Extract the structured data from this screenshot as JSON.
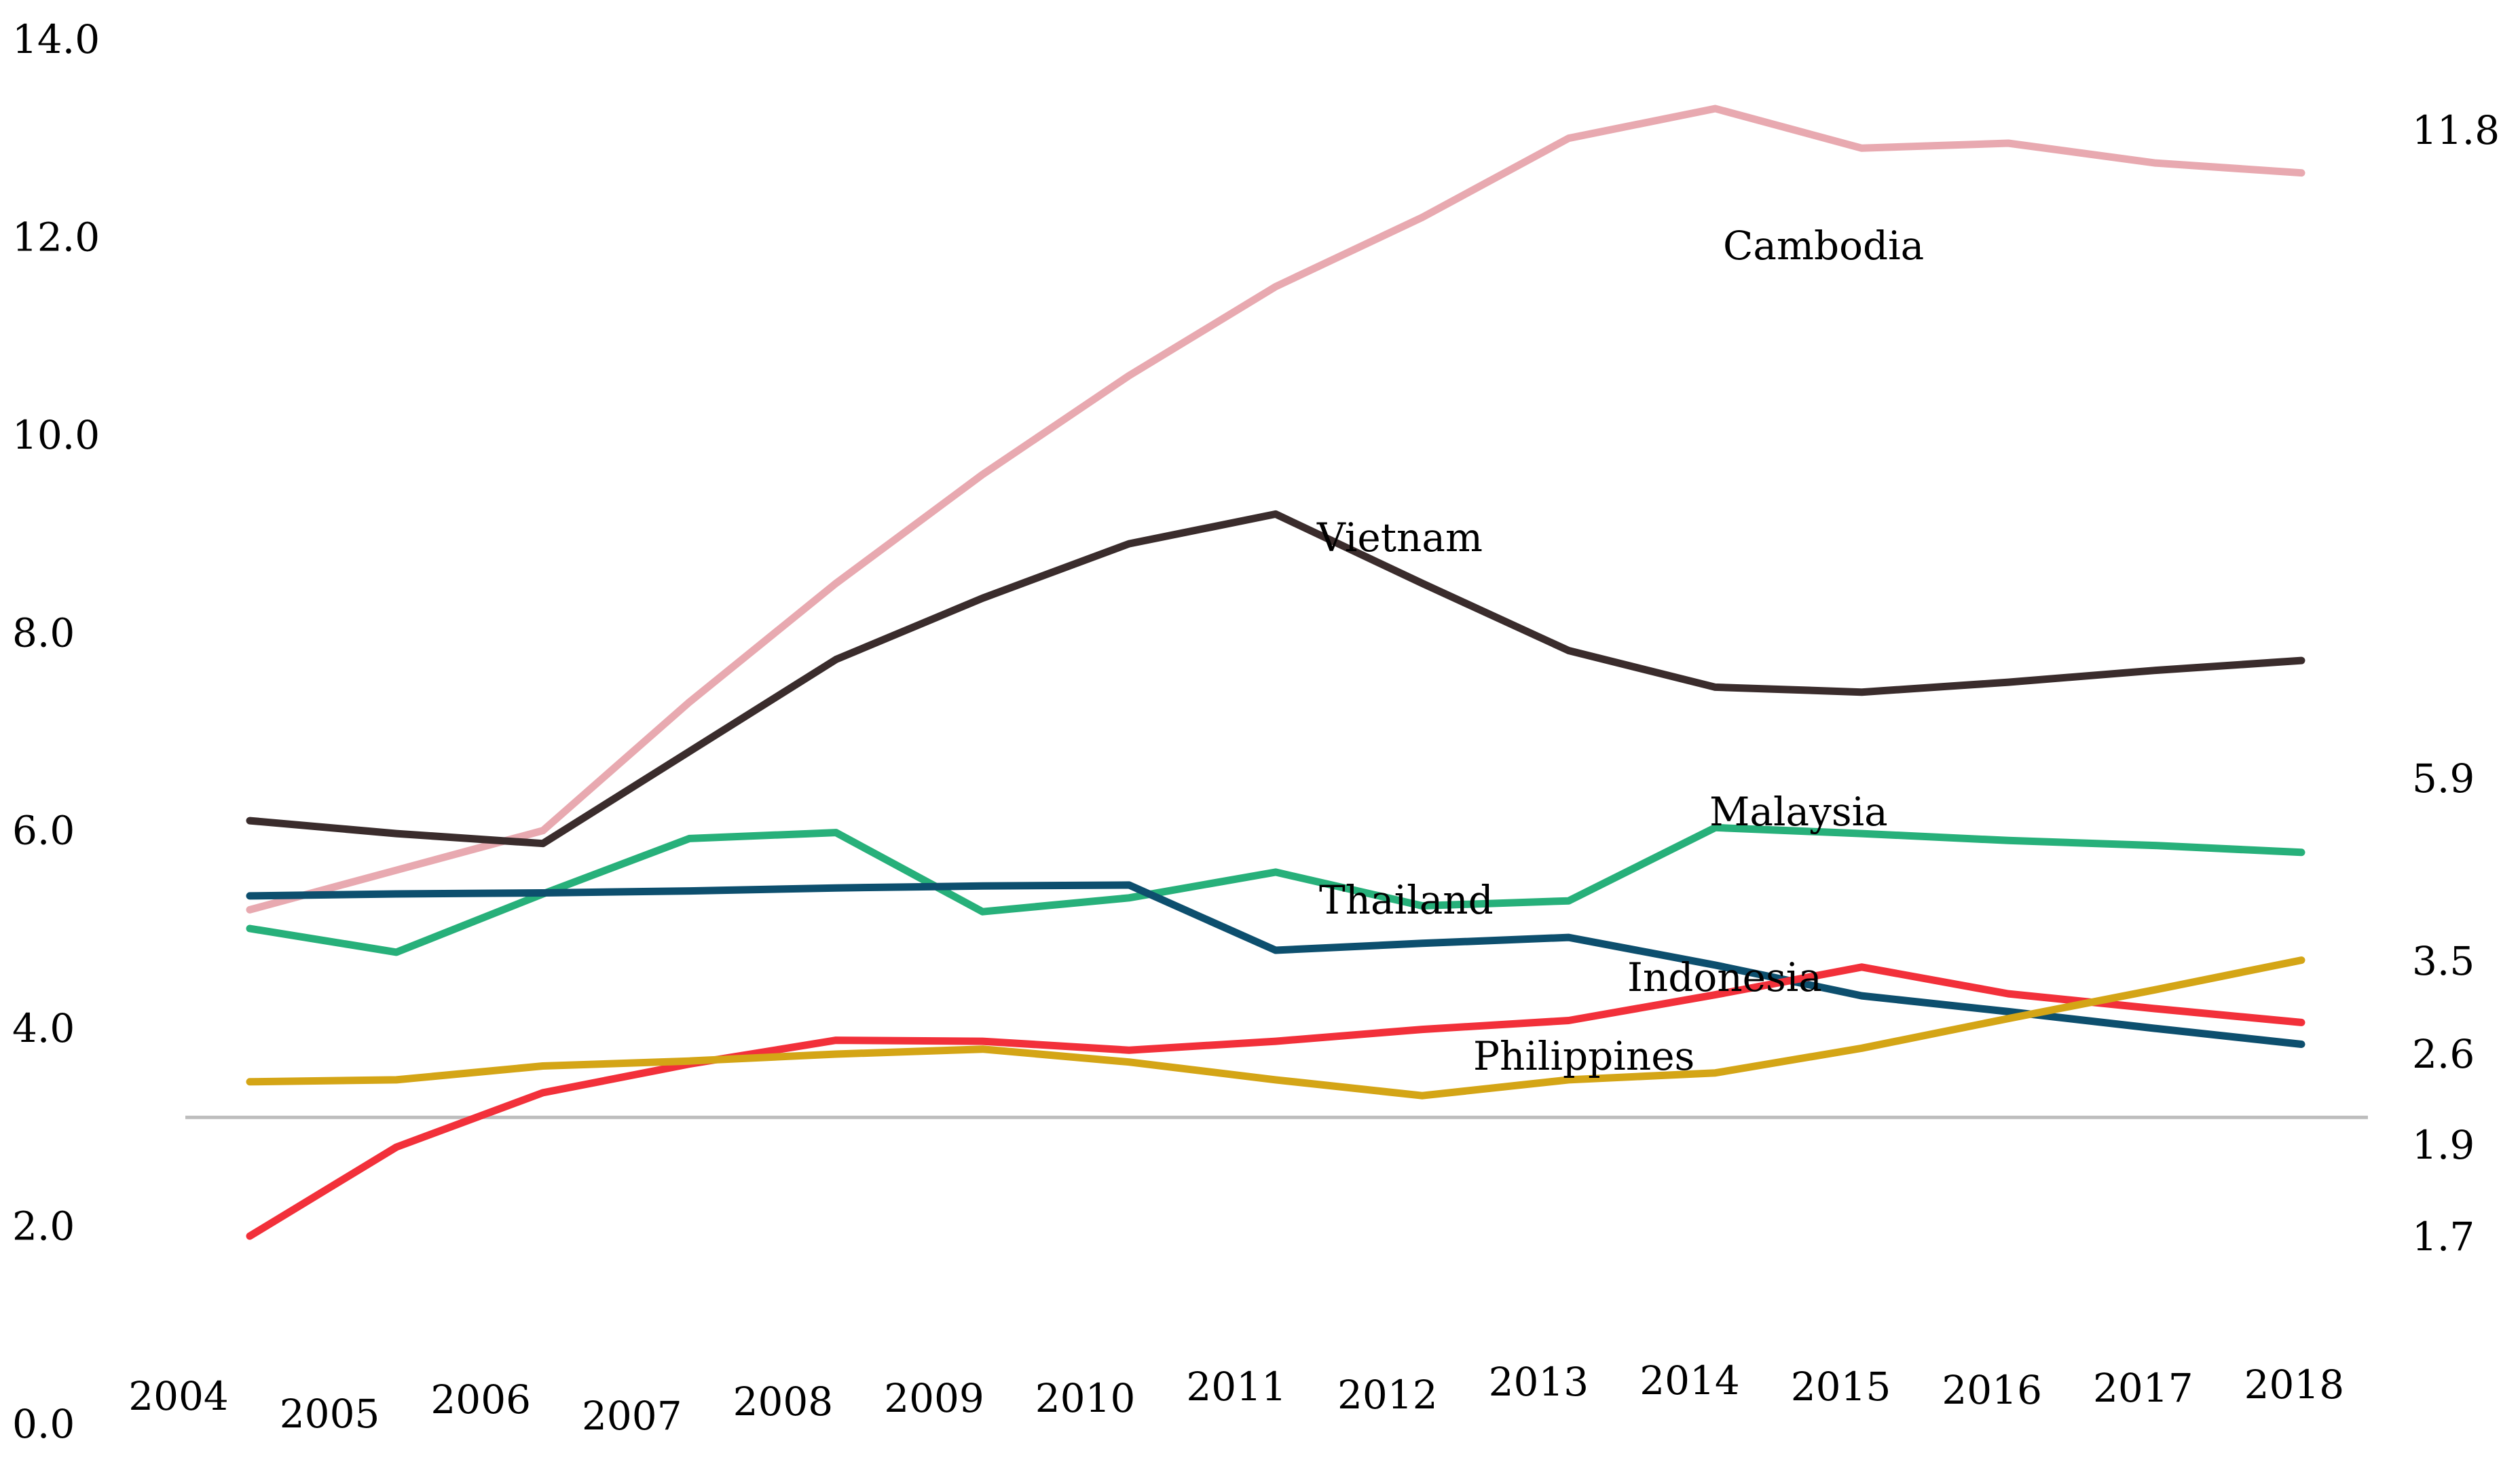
{
  "chart_data": {
    "type": "line",
    "title": "",
    "xlabel": "",
    "ylabel": "",
    "ylim": [
      0,
      14
    ],
    "y_ticks": [
      "0.0",
      "2.0",
      "4.0",
      "6.0",
      "8.0",
      "10.0",
      "12.0",
      "14.0"
    ],
    "x": [
      "2004",
      "2005",
      "2006",
      "2007",
      "2008",
      "2009",
      "2010",
      "2011",
      "2012",
      "2013",
      "2014",
      "2015",
      "2016",
      "2017",
      "2018"
    ],
    "grid": false,
    "legend": "inline labels",
    "reference_line": 3.1,
    "right_labels": [
      "11.8",
      "5.9",
      "3.5",
      "2.6",
      "1.9",
      "1.7"
    ],
    "series": [
      {
        "name": "Cambodia",
        "color": "#e8a9b0",
        "values": [
          5.2,
          5.6,
          6.0,
          7.3,
          8.5,
          9.6,
          10.6,
          11.5,
          12.2,
          13.0,
          13.3,
          12.9,
          12.95,
          12.75,
          12.65
        ]
      },
      {
        "name": "Vietnam",
        "color": "#3a2c2c",
        "values": [
          6.1,
          5.97,
          5.87,
          6.8,
          7.73,
          8.35,
          8.9,
          9.2,
          8.5,
          7.82,
          7.45,
          7.4,
          7.5,
          7.62,
          7.72
        ]
      },
      {
        "name": "Malaysia",
        "color": "#27b07a",
        "values": [
          5.01,
          4.77,
          5.36,
          5.92,
          5.98,
          5.18,
          5.32,
          5.58,
          5.24,
          5.29,
          6.03,
          5.97,
          5.9,
          5.85,
          5.78
        ]
      },
      {
        "name": "Thailand",
        "color": "#0d4f6e",
        "values": [
          5.34,
          5.36,
          5.37,
          5.39,
          5.42,
          5.44,
          5.45,
          4.79,
          4.86,
          4.92,
          4.64,
          4.33,
          4.17,
          4.0,
          3.84
        ]
      },
      {
        "name": "Indonesia",
        "color": "#f2303a",
        "values": [
          1.9,
          2.8,
          3.35,
          3.64,
          3.88,
          3.87,
          3.78,
          3.87,
          3.99,
          4.08,
          4.34,
          4.62,
          4.35,
          4.2,
          4.06
        ]
      },
      {
        "name": "Philippines",
        "color": "#d4a516",
        "values": [
          3.46,
          3.48,
          3.62,
          3.67,
          3.74,
          3.79,
          3.66,
          3.48,
          3.32,
          3.48,
          3.55,
          3.8,
          4.1,
          4.39,
          4.69
        ]
      }
    ]
  }
}
